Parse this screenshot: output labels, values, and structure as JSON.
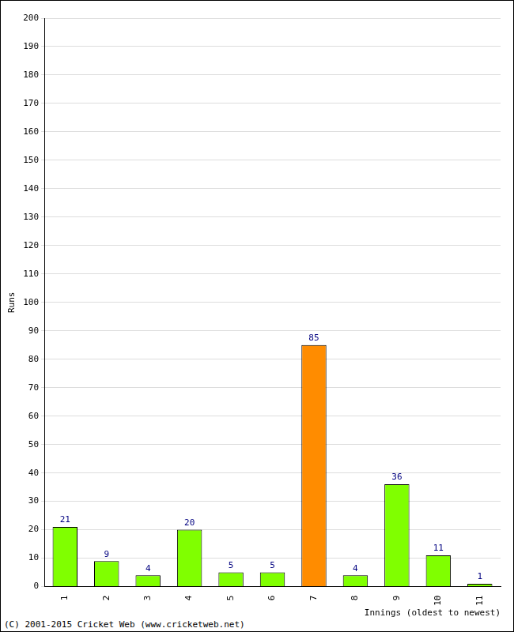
{
  "chart_data": {
    "type": "bar",
    "categories": [
      "1",
      "2",
      "3",
      "4",
      "5",
      "6",
      "7",
      "8",
      "9",
      "10",
      "11"
    ],
    "values": [
      21,
      9,
      4,
      20,
      5,
      5,
      85,
      4,
      36,
      11,
      1
    ],
    "colors": [
      "#80ff00",
      "#80ff00",
      "#80ff00",
      "#80ff00",
      "#80ff00",
      "#80ff00",
      "#ff8c00",
      "#80ff00",
      "#80ff00",
      "#80ff00",
      "#80ff00"
    ],
    "x_label": "Innings (oldest to newest)",
    "y_label": "Runs",
    "ylim": [
      0,
      200
    ],
    "yticks": [
      0,
      10,
      20,
      30,
      40,
      50,
      60,
      70,
      80,
      90,
      100,
      110,
      120,
      130,
      140,
      150,
      160,
      170,
      180,
      190,
      200
    ],
    "grid": true,
    "data_labels": true,
    "annotations": [
      "(C) 2001-2015 Cricket Web (www.cricketweb.net)"
    ]
  }
}
